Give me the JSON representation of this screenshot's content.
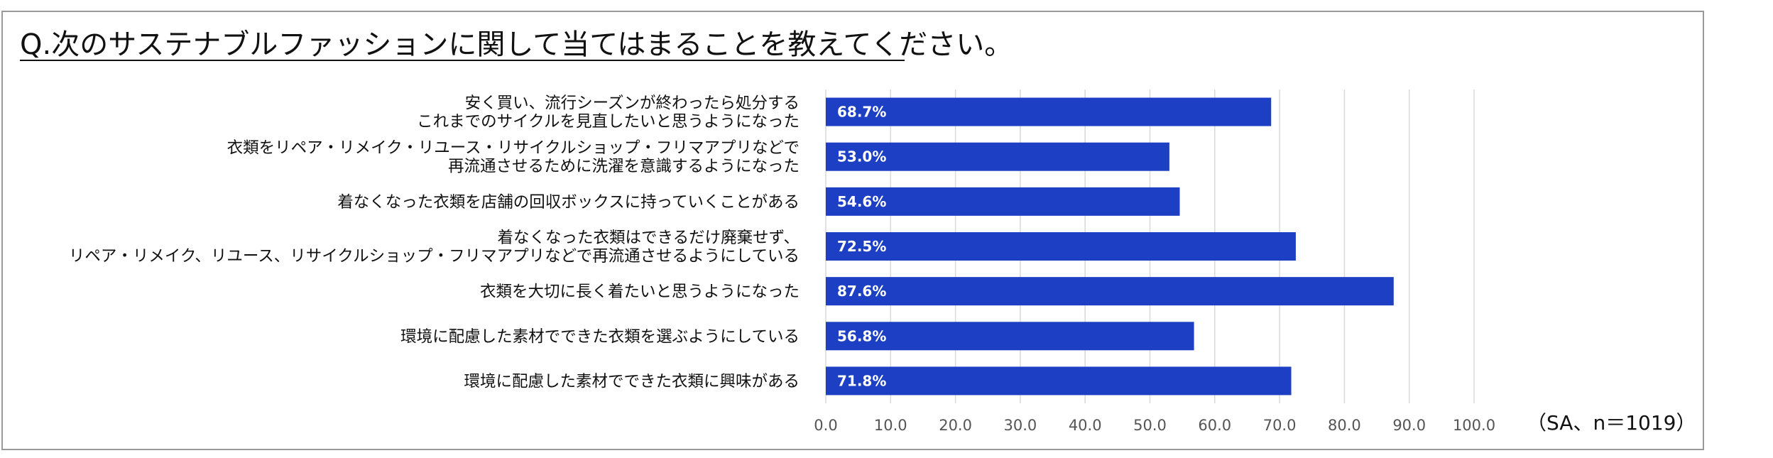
{
  "chart_data": {
    "type": "bar",
    "orientation": "horizontal",
    "title": "Q.次のサステナブルファッションに関して当てはまることを教えてください。",
    "note": "（SA、n＝1019）",
    "categories": [
      [
        "安く買い、流行シーズンが終わったら処分する",
        "これまでのサイクルを見直したいと思うようになった"
      ],
      [
        "衣類をリペア・リメイク・リユース・リサイクルショップ・フリマアプリなどで",
        "再流通させるために洗濯を意識するようになった"
      ],
      [
        "着なくなった衣類を店舗の回収ボックスに持っていくことがある"
      ],
      [
        "着なくなった衣類はできるだけ廃棄せず、",
        "リペア・リメイク、リユース、リサイクルショップ・フリマアプリなどで再流通させるようにしている"
      ],
      [
        "衣類を大切に長く着たいと思うようになった"
      ],
      [
        "環境に配慮した素材でできた衣類を選ぶようにしている"
      ],
      [
        "環境に配慮した素材でできた衣類に興味がある"
      ]
    ],
    "values": [
      68.7,
      53.0,
      54.6,
      72.5,
      87.6,
      56.8,
      71.8
    ],
    "value_labels": [
      "68.7%",
      "53.0%",
      "54.6%",
      "72.5%",
      "87.6%",
      "56.8%",
      "71.8%"
    ],
    "xlim": [
      0,
      100
    ],
    "xticks": [
      "0.0",
      "10.0",
      "20.0",
      "30.0",
      "40.0",
      "50.0",
      "60.0",
      "70.0",
      "80.0",
      "90.0",
      "100.0"
    ],
    "grid": true,
    "bar_color": "#1d3fc4",
    "grid_color": "#d9d9d9"
  }
}
